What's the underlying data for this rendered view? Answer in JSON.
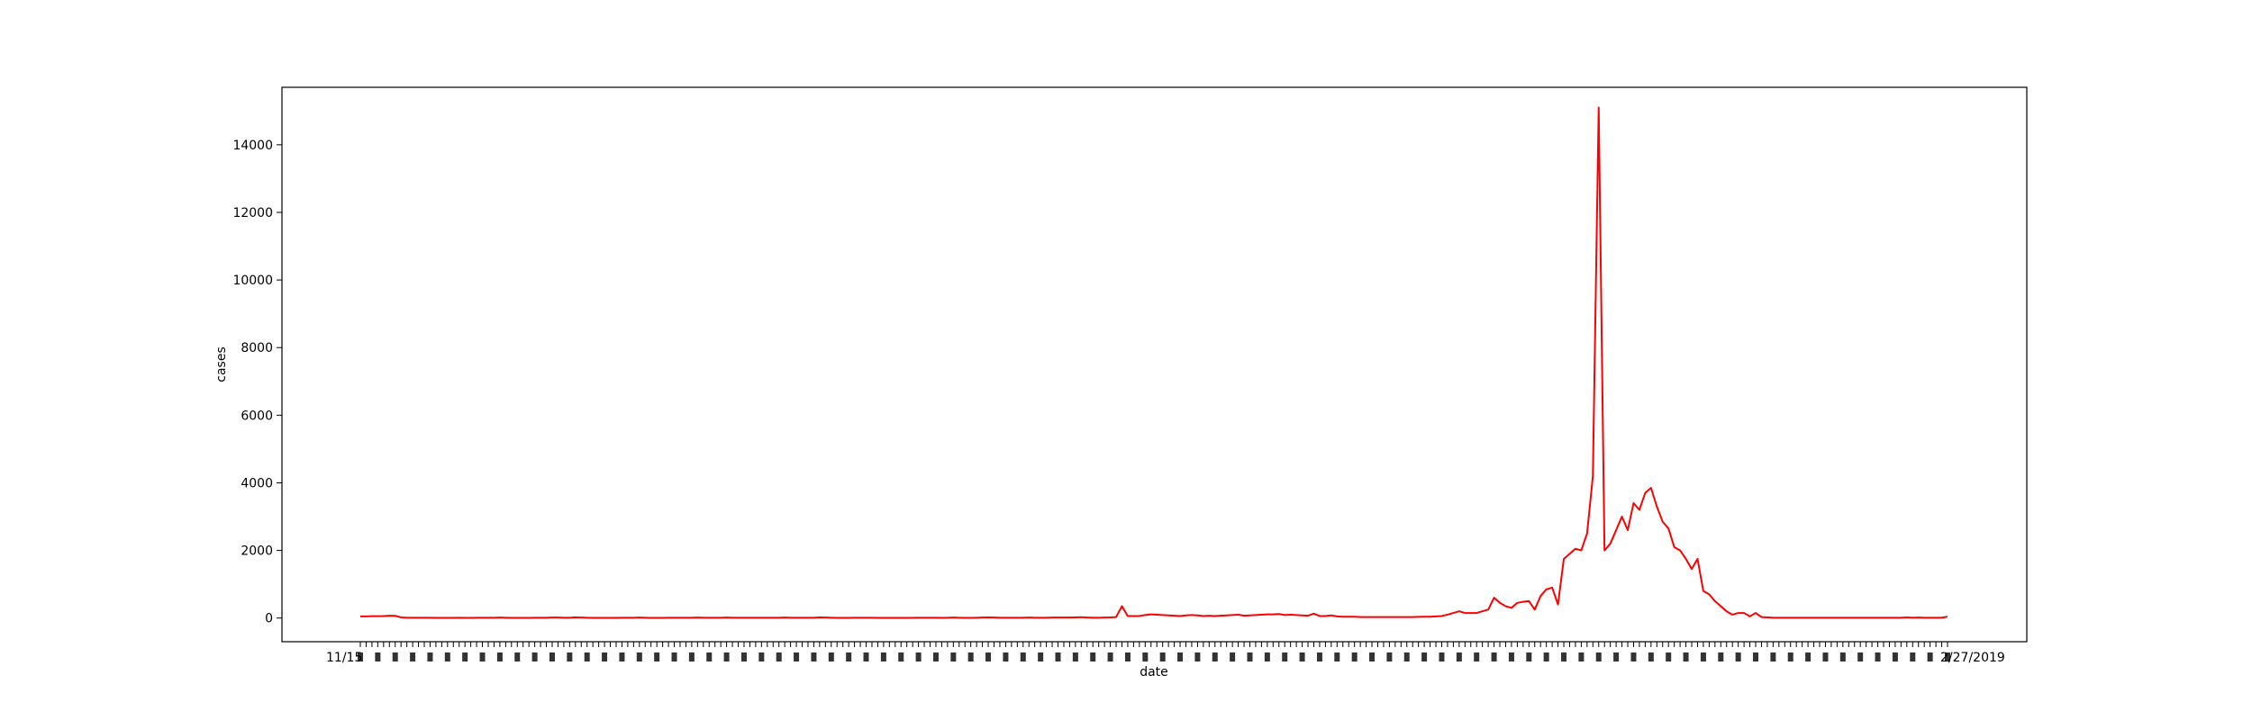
{
  "chart_data": {
    "type": "line",
    "title": "",
    "xlabel": "date",
    "ylabel": "cases",
    "ylim": [
      -700,
      15700
    ],
    "yticks": [
      0,
      2000,
      4000,
      6000,
      8000,
      10000,
      12000,
      14000
    ],
    "grid": false,
    "legend": "none",
    "x_first_label": "11/15",
    "x_last_label": "2/27/2019",
    "series": [
      {
        "color": "#ff0000",
        "values": [
          50,
          50,
          55,
          55,
          60,
          70,
          65,
          20,
          10,
          10,
          10,
          10,
          10,
          5,
          5,
          5,
          5,
          8,
          5,
          5,
          10,
          10,
          10,
          10,
          15,
          10,
          5,
          5,
          5,
          5,
          10,
          10,
          10,
          15,
          15,
          10,
          10,
          20,
          15,
          10,
          5,
          5,
          5,
          5,
          5,
          10,
          10,
          10,
          15,
          10,
          5,
          5,
          5,
          10,
          10,
          10,
          10,
          10,
          15,
          10,
          10,
          10,
          10,
          15,
          10,
          10,
          10,
          10,
          10,
          10,
          10,
          10,
          10,
          15,
          10,
          10,
          10,
          10,
          10,
          20,
          15,
          10,
          5,
          5,
          5,
          10,
          10,
          10,
          10,
          5,
          5,
          5,
          5,
          5,
          5,
          5,
          10,
          10,
          10,
          10,
          5,
          10,
          15,
          10,
          5,
          5,
          10,
          15,
          20,
          15,
          10,
          10,
          10,
          10,
          10,
          15,
          10,
          10,
          10,
          15,
          15,
          15,
          15,
          20,
          25,
          15,
          10,
          10,
          15,
          20,
          30,
          350,
          60,
          60,
          60,
          90,
          110,
          100,
          90,
          80,
          70,
          60,
          80,
          90,
          80,
          60,
          70,
          60,
          70,
          80,
          90,
          100,
          70,
          80,
          90,
          100,
          110,
          110,
          120,
          90,
          100,
          90,
          80,
          70,
          130,
          60,
          60,
          80,
          50,
          40,
          40,
          40,
          30,
          30,
          30,
          30,
          30,
          30,
          30,
          30,
          30,
          30,
          35,
          40,
          40,
          50,
          60,
          100,
          150,
          200,
          150,
          150,
          150,
          200,
          250,
          600,
          450,
          350,
          300,
          450,
          480,
          500,
          250,
          650,
          850,
          900,
          400,
          1750,
          1900,
          2050,
          2000,
          2500,
          4200,
          15100,
          2000,
          2200,
          2600,
          3000,
          2600,
          3400,
          3200,
          3700,
          3850,
          3300,
          2850,
          2650,
          2100,
          2000,
          1750,
          1450,
          1750,
          800,
          700,
          500,
          350,
          200,
          100,
          150,
          150,
          50,
          150,
          30,
          20,
          10,
          10,
          10,
          10,
          10,
          10,
          10,
          10,
          10,
          10,
          10,
          10,
          10,
          10,
          10,
          10,
          10,
          10,
          10,
          10,
          10,
          10,
          10,
          20,
          10,
          15,
          10,
          10,
          10,
          10,
          40
        ]
      }
    ]
  }
}
